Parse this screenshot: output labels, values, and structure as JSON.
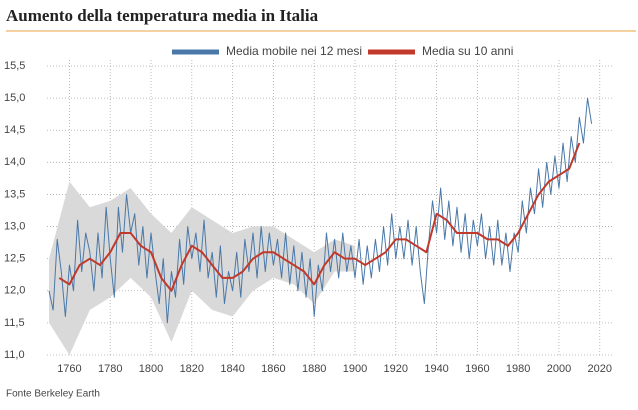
{
  "chart_data": {
    "type": "line",
    "title": "Aumento della temperatura media in Italia",
    "source": "Fonte Berkeley Earth",
    "legend": "top",
    "grid": true,
    "xlim": [
      1749,
      2026
    ],
    "ylim": [
      11.0,
      15.5
    ],
    "xticks": [
      1760,
      1780,
      1800,
      1820,
      1840,
      1860,
      1880,
      1900,
      1920,
      1940,
      1960,
      1980,
      2000,
      2020
    ],
    "yticks": [
      {
        "value": 11.0,
        "label": "11,0"
      },
      {
        "value": 11.5,
        "label": "11,5"
      },
      {
        "value": 12.0,
        "label": "12,0"
      },
      {
        "value": 12.5,
        "label": "12,5"
      },
      {
        "value": 13.0,
        "label": "13,0"
      },
      {
        "value": 13.5,
        "label": "13,5"
      },
      {
        "value": 14.0,
        "label": "14,0"
      },
      {
        "value": 14.5,
        "label": "14,5"
      },
      {
        "value": 15.0,
        "label": "15,0"
      },
      {
        "value": 15.5,
        "label": "15,5"
      }
    ],
    "band": {
      "color": "#d9d9d9",
      "x": [
        1750,
        1760,
        1770,
        1780,
        1790,
        1800,
        1810,
        1820,
        1830,
        1840,
        1850,
        1860,
        1870,
        1880,
        1890,
        1900
      ],
      "lower": [
        11.5,
        11.0,
        11.7,
        11.9,
        12.2,
        11.9,
        11.2,
        12.0,
        11.7,
        11.6,
        12.0,
        12.2,
        12.1,
        11.8,
        12.3,
        12.3
      ],
      "upper": [
        12.5,
        13.7,
        13.3,
        13.4,
        13.6,
        13.2,
        12.9,
        13.3,
        13.1,
        12.9,
        13.0,
        13.0,
        12.8,
        12.6,
        12.8,
        12.7
      ]
    },
    "series": [
      {
        "name": "Media mobile nei 12 mesi",
        "color": "#4a78a8",
        "x": [
          1750,
          1752,
          1754,
          1756,
          1758,
          1760,
          1762,
          1764,
          1766,
          1768,
          1770,
          1772,
          1774,
          1776,
          1778,
          1780,
          1782,
          1784,
          1786,
          1788,
          1790,
          1792,
          1794,
          1796,
          1798,
          1800,
          1802,
          1804,
          1806,
          1808,
          1810,
          1812,
          1814,
          1816,
          1818,
          1820,
          1822,
          1824,
          1826,
          1828,
          1830,
          1832,
          1834,
          1836,
          1838,
          1840,
          1842,
          1844,
          1846,
          1848,
          1850,
          1852,
          1854,
          1856,
          1858,
          1860,
          1862,
          1864,
          1866,
          1868,
          1870,
          1872,
          1874,
          1876,
          1878,
          1880,
          1882,
          1884,
          1886,
          1888,
          1890,
          1892,
          1894,
          1896,
          1898,
          1900,
          1902,
          1904,
          1906,
          1908,
          1910,
          1912,
          1914,
          1916,
          1918,
          1920,
          1922,
          1924,
          1926,
          1928,
          1930,
          1932,
          1934,
          1936,
          1938,
          1940,
          1942,
          1944,
          1946,
          1948,
          1950,
          1952,
          1954,
          1956,
          1958,
          1960,
          1962,
          1964,
          1966,
          1968,
          1970,
          1972,
          1974,
          1976,
          1978,
          1980,
          1982,
          1984,
          1986,
          1988,
          1990,
          1992,
          1994,
          1996,
          1998,
          2000,
          2002,
          2004,
          2006,
          2008,
          2010,
          2012,
          2014,
          2016
        ],
        "values": [
          12.0,
          11.7,
          12.8,
          12.3,
          11.6,
          12.4,
          12.0,
          13.1,
          12.3,
          12.9,
          12.6,
          12.0,
          12.9,
          12.2,
          13.3,
          12.5,
          11.9,
          13.3,
          12.6,
          13.5,
          12.9,
          13.2,
          12.4,
          13.0,
          12.2,
          12.9,
          12.3,
          11.8,
          12.5,
          11.5,
          12.3,
          11.9,
          12.8,
          12.1,
          13.0,
          12.5,
          12.9,
          12.3,
          13.1,
          12.2,
          12.6,
          11.9,
          12.7,
          11.8,
          12.3,
          12.0,
          12.6,
          11.9,
          12.8,
          12.3,
          12.9,
          12.2,
          13.0,
          12.3,
          12.9,
          12.4,
          12.8,
          12.2,
          12.9,
          12.1,
          12.7,
          12.0,
          12.6,
          11.9,
          12.5,
          11.6,
          12.4,
          12.0,
          12.9,
          12.3,
          12.8,
          12.2,
          12.9,
          12.3,
          12.7,
          12.2,
          12.8,
          12.1,
          12.7,
          12.2,
          12.8,
          12.3,
          13.0,
          12.4,
          13.2,
          12.5,
          13.0,
          12.5,
          13.1,
          12.4,
          13.0,
          12.3,
          11.8,
          12.7,
          13.4,
          12.9,
          13.6,
          12.8,
          13.4,
          12.7,
          13.3,
          12.6,
          13.2,
          12.5,
          13.1,
          12.7,
          13.2,
          12.5,
          13.0,
          12.4,
          13.1,
          12.4,
          12.9,
          12.3,
          12.9,
          12.6,
          13.4,
          12.9,
          13.6,
          13.2,
          13.9,
          13.3,
          14.0,
          13.5,
          14.1,
          13.6,
          14.3,
          13.7,
          14.4,
          14.0,
          14.7,
          14.3,
          15.0,
          14.6
        ]
      },
      {
        "name": "Media su 10 anni",
        "color": "#c0392b",
        "x": [
          1755,
          1760,
          1765,
          1770,
          1775,
          1780,
          1785,
          1790,
          1795,
          1800,
          1805,
          1810,
          1815,
          1820,
          1825,
          1830,
          1835,
          1840,
          1845,
          1850,
          1855,
          1860,
          1865,
          1870,
          1875,
          1880,
          1885,
          1890,
          1895,
          1900,
          1905,
          1910,
          1915,
          1920,
          1925,
          1930,
          1935,
          1940,
          1945,
          1950,
          1955,
          1960,
          1965,
          1970,
          1975,
          1980,
          1985,
          1990,
          1995,
          2000,
          2005,
          2010
        ],
        "values": [
          12.2,
          12.1,
          12.4,
          12.5,
          12.4,
          12.6,
          12.9,
          12.9,
          12.7,
          12.6,
          12.2,
          12.0,
          12.4,
          12.7,
          12.6,
          12.4,
          12.2,
          12.2,
          12.3,
          12.5,
          12.6,
          12.6,
          12.5,
          12.4,
          12.3,
          12.1,
          12.4,
          12.6,
          12.5,
          12.5,
          12.4,
          12.5,
          12.6,
          12.8,
          12.8,
          12.7,
          12.6,
          13.2,
          13.1,
          12.9,
          12.9,
          12.9,
          12.8,
          12.8,
          12.7,
          12.9,
          13.2,
          13.5,
          13.7,
          13.8,
          13.9,
          14.3
        ]
      }
    ]
  }
}
